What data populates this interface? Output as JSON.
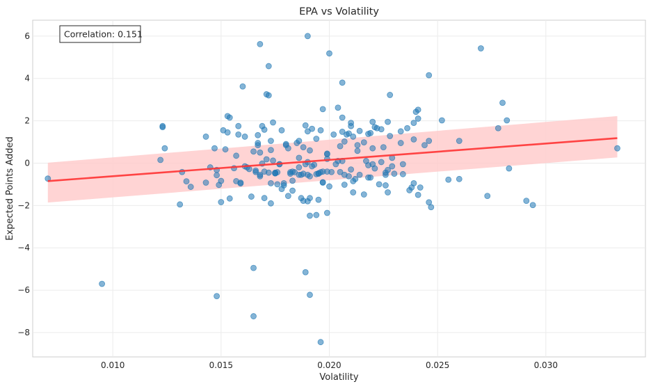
{
  "chart_data": {
    "type": "scatter",
    "title": "EPA vs Volatility",
    "xlabel": "Volatility",
    "ylabel": "Expected Points Added",
    "xlim": [
      0.0063,
      0.0346
    ],
    "ylim": [
      -9.15,
      6.75
    ],
    "x_ticks": [
      0.01,
      0.015,
      0.02,
      0.025,
      0.03
    ],
    "x_tick_labels": [
      "0.010",
      "0.015",
      "0.020",
      "0.025",
      "0.030"
    ],
    "y_ticks": [
      6,
      4,
      2,
      0,
      -2,
      -4,
      -6,
      -8
    ],
    "y_tick_labels": [
      "6",
      "4",
      "2",
      "0",
      "−2",
      "−4",
      "−6",
      "−8"
    ],
    "grid": true,
    "annotation": "Correlation: 0.151",
    "colors": {
      "points": "#1f77b4",
      "regression_line": "#ff3333",
      "confidence_band": "#ffcccc"
    },
    "regression": {
      "x": [
        0.007,
        0.0333
      ],
      "y": [
        -0.85,
        1.18
      ]
    },
    "confidence_band": {
      "x": [
        0.007,
        0.0333
      ],
      "upper": [
        0.02,
        2.22
      ],
      "lower": [
        -1.86,
        0.27
      ]
    },
    "points": [
      [
        0.007,
        -0.73
      ],
      [
        0.0095,
        -5.7
      ],
      [
        0.0122,
        0.15
      ],
      [
        0.0123,
        1.75
      ],
      [
        0.0123,
        1.7
      ],
      [
        0.0124,
        0.7
      ],
      [
        0.0131,
        -1.95
      ],
      [
        0.0132,
        -0.42
      ],
      [
        0.0134,
        -0.86
      ],
      [
        0.0136,
        -1.12
      ],
      [
        0.0143,
        1.25
      ],
      [
        0.0143,
        -0.92
      ],
      [
        0.0145,
        -0.2
      ],
      [
        0.0147,
        0.7
      ],
      [
        0.0148,
        -6.28
      ],
      [
        0.0148,
        -0.57
      ],
      [
        0.0148,
        -0.32
      ],
      [
        0.0149,
        -1.03
      ],
      [
        0.015,
        -0.84
      ],
      [
        0.015,
        -1.84
      ],
      [
        0.0151,
        1.55
      ],
      [
        0.0152,
        0.65
      ],
      [
        0.0153,
        1.45
      ],
      [
        0.0153,
        2.22
      ],
      [
        0.0154,
        2.15
      ],
      [
        0.0154,
        -1.67
      ],
      [
        0.0156,
        -0.24
      ],
      [
        0.0157,
        -0.85
      ],
      [
        0.0157,
        0.35
      ],
      [
        0.0158,
        1.75
      ],
      [
        0.0158,
        1.35
      ],
      [
        0.0159,
        -0.96
      ],
      [
        0.0159,
        -0.92
      ],
      [
        0.016,
        3.62
      ],
      [
        0.0161,
        1.25
      ],
      [
        0.0161,
        -0.15
      ],
      [
        0.0162,
        -0.2
      ],
      [
        0.0163,
        -0.28
      ],
      [
        0.0164,
        -1.58
      ],
      [
        0.0165,
        -4.95
      ],
      [
        0.0165,
        -7.23
      ],
      [
        0.0165,
        0.55
      ],
      [
        0.0166,
        -0.42
      ],
      [
        0.0166,
        -0.35
      ],
      [
        0.0167,
        0.85
      ],
      [
        0.0167,
        1.32
      ],
      [
        0.0167,
        0.95
      ],
      [
        0.0168,
        5.62
      ],
      [
        0.0168,
        -0.55
      ],
      [
        0.0168,
        0.5
      ],
      [
        0.0168,
        -0.62
      ],
      [
        0.0169,
        1.75
      ],
      [
        0.0169,
        -0.02
      ],
      [
        0.017,
        1.58
      ],
      [
        0.017,
        -1.65
      ],
      [
        0.017,
        -0.4
      ],
      [
        0.0171,
        0.18
      ],
      [
        0.0171,
        3.25
      ],
      [
        0.0172,
        3.2
      ],
      [
        0.0172,
        4.58
      ],
      [
        0.0172,
        -0.45
      ],
      [
        0.0173,
        -1.9
      ],
      [
        0.0173,
        -0.95
      ],
      [
        0.0173,
        0.62
      ],
      [
        0.0173,
        1.05
      ],
      [
        0.0174,
        1.92
      ],
      [
        0.0174,
        0.12
      ],
      [
        0.0175,
        -0.45
      ],
      [
        0.0175,
        -0.48
      ],
      [
        0.0175,
        -0.48
      ],
      [
        0.0176,
        -0.43
      ],
      [
        0.0176,
        -1.0
      ],
      [
        0.0177,
        -0.05
      ],
      [
        0.0177,
        -0.05
      ],
      [
        0.0178,
        1.55
      ],
      [
        0.0178,
        -1.22
      ],
      [
        0.0179,
        -1.05
      ],
      [
        0.0179,
        -0.95
      ],
      [
        0.018,
        0.9
      ],
      [
        0.018,
        0.85
      ],
      [
        0.0181,
        0.7
      ],
      [
        0.0181,
        -1.55
      ],
      [
        0.0182,
        -0.5
      ],
      [
        0.0182,
        -0.43
      ],
      [
        0.0183,
        -1.3
      ],
      [
        0.0183,
        -0.83
      ],
      [
        0.0183,
        -0.4
      ],
      [
        0.0184,
        -0.43
      ],
      [
        0.0185,
        0.95
      ],
      [
        0.0186,
        1.05
      ],
      [
        0.0186,
        -0.2
      ],
      [
        0.0186,
        -0.55
      ],
      [
        0.0186,
        0.25
      ],
      [
        0.0187,
        -0.55
      ],
      [
        0.0187,
        -1.65
      ],
      [
        0.0188,
        -0.5
      ],
      [
        0.0188,
        -1.78
      ],
      [
        0.0188,
        0.75
      ],
      [
        0.0189,
        -5.15
      ],
      [
        0.0189,
        1.78
      ],
      [
        0.0189,
        -0.05
      ],
      [
        0.019,
        6.0
      ],
      [
        0.019,
        1.5
      ],
      [
        0.019,
        -0.55
      ],
      [
        0.019,
        -1.8
      ],
      [
        0.019,
        0.05
      ],
      [
        0.0191,
        -2.48
      ],
      [
        0.0191,
        -1.65
      ],
      [
        0.0191,
        -6.22
      ],
      [
        0.0191,
        0.6
      ],
      [
        0.0191,
        -0.62
      ],
      [
        0.0192,
        1.62
      ],
      [
        0.0192,
        -0.15
      ],
      [
        0.0193,
        -0.08
      ],
      [
        0.0194,
        -2.45
      ],
      [
        0.0194,
        1.15
      ],
      [
        0.0194,
        -0.52
      ],
      [
        0.0195,
        -0.5
      ],
      [
        0.0195,
        -0.48
      ],
      [
        0.0195,
        -1.73
      ],
      [
        0.0196,
        -8.45
      ],
      [
        0.0196,
        -0.43
      ],
      [
        0.0196,
        1.55
      ],
      [
        0.0197,
        -0.92
      ],
      [
        0.0197,
        2.55
      ],
      [
        0.0197,
        -0.9
      ],
      [
        0.0197,
        -0.4
      ],
      [
        0.0199,
        0.42
      ],
      [
        0.0199,
        0.45
      ],
      [
        0.0199,
        0.2
      ],
      [
        0.0199,
        -0.4
      ],
      [
        0.0199,
        -2.35
      ],
      [
        0.02,
        5.18
      ],
      [
        0.02,
        -1.1
      ],
      [
        0.0201,
        -0.42
      ],
      [
        0.0202,
        1.35
      ],
      [
        0.0203,
        -0.05
      ],
      [
        0.0204,
        2.62
      ],
      [
        0.0204,
        0.1
      ],
      [
        0.0205,
        -0.42
      ],
      [
        0.0205,
        0.8
      ],
      [
        0.0206,
        3.8
      ],
      [
        0.0206,
        0.1
      ],
      [
        0.0206,
        2.15
      ],
      [
        0.0206,
        1.48
      ],
      [
        0.0207,
        -0.55
      ],
      [
        0.0207,
        1.02
      ],
      [
        0.0207,
        -1.02
      ],
      [
        0.0208,
        1.35
      ],
      [
        0.0209,
        -0.62
      ],
      [
        0.0209,
        1.4
      ],
      [
        0.021,
        1.9
      ],
      [
        0.021,
        -0.3
      ],
      [
        0.021,
        1.75
      ],
      [
        0.0211,
        -1.38
      ],
      [
        0.0211,
        1.25
      ],
      [
        0.0211,
        -0.85
      ],
      [
        0.0212,
        -0.75
      ],
      [
        0.0213,
        0.58
      ],
      [
        0.0213,
        0.85
      ],
      [
        0.0214,
        1.52
      ],
      [
        0.0214,
        -0.55
      ],
      [
        0.0216,
        0.98
      ],
      [
        0.0216,
        -1.48
      ],
      [
        0.0217,
        0.1
      ],
      [
        0.0218,
        -0.1
      ],
      [
        0.0218,
        1.38
      ],
      [
        0.0218,
        -0.68
      ],
      [
        0.0219,
        1.42
      ],
      [
        0.0219,
        -0.68
      ],
      [
        0.022,
        1.95
      ],
      [
        0.022,
        0.7
      ],
      [
        0.022,
        -0.05
      ],
      [
        0.0221,
        -0.25
      ],
      [
        0.0221,
        1.7
      ],
      [
        0.0222,
        1.65
      ],
      [
        0.0223,
        -1.0
      ],
      [
        0.0224,
        1.6
      ],
      [
        0.0224,
        0.05
      ],
      [
        0.0225,
        0.75
      ],
      [
        0.0226,
        -0.55
      ],
      [
        0.0226,
        -0.45
      ],
      [
        0.0226,
        -1.05
      ],
      [
        0.0227,
        -1.38
      ],
      [
        0.0227,
        -0.32
      ],
      [
        0.0227,
        1.95
      ],
      [
        0.0228,
        1.28
      ],
      [
        0.0228,
        3.22
      ],
      [
        0.0229,
        0.25
      ],
      [
        0.0229,
        -0.15
      ],
      [
        0.023,
        -0.5
      ],
      [
        0.0233,
        0.95
      ],
      [
        0.0233,
        1.5
      ],
      [
        0.0234,
        -0.05
      ],
      [
        0.0234,
        -0.52
      ],
      [
        0.0236,
        1.65
      ],
      [
        0.0237,
        -1.28
      ],
      [
        0.0238,
        -1.15
      ],
      [
        0.0239,
        -0.95
      ],
      [
        0.0239,
        1.9
      ],
      [
        0.0239,
        1.12
      ],
      [
        0.024,
        2.42
      ],
      [
        0.0241,
        -1.5
      ],
      [
        0.0241,
        2.52
      ],
      [
        0.0241,
        2.1
      ],
      [
        0.0242,
        -1.15
      ],
      [
        0.0244,
        0.85
      ],
      [
        0.0246,
        4.15
      ],
      [
        0.0246,
        -1.85
      ],
      [
        0.0246,
        1.05
      ],
      [
        0.0247,
        -2.08
      ],
      [
        0.0252,
        2.02
      ],
      [
        0.0255,
        -0.78
      ],
      [
        0.026,
        1.05
      ],
      [
        0.026,
        -0.75
      ],
      [
        0.027,
        5.42
      ],
      [
        0.0273,
        -1.55
      ],
      [
        0.0278,
        1.65
      ],
      [
        0.028,
        2.85
      ],
      [
        0.0282,
        2.02
      ],
      [
        0.0283,
        -0.25
      ],
      [
        0.0291,
        -1.78
      ],
      [
        0.0294,
        -1.98
      ],
      [
        0.0333,
        0.7
      ]
    ]
  }
}
